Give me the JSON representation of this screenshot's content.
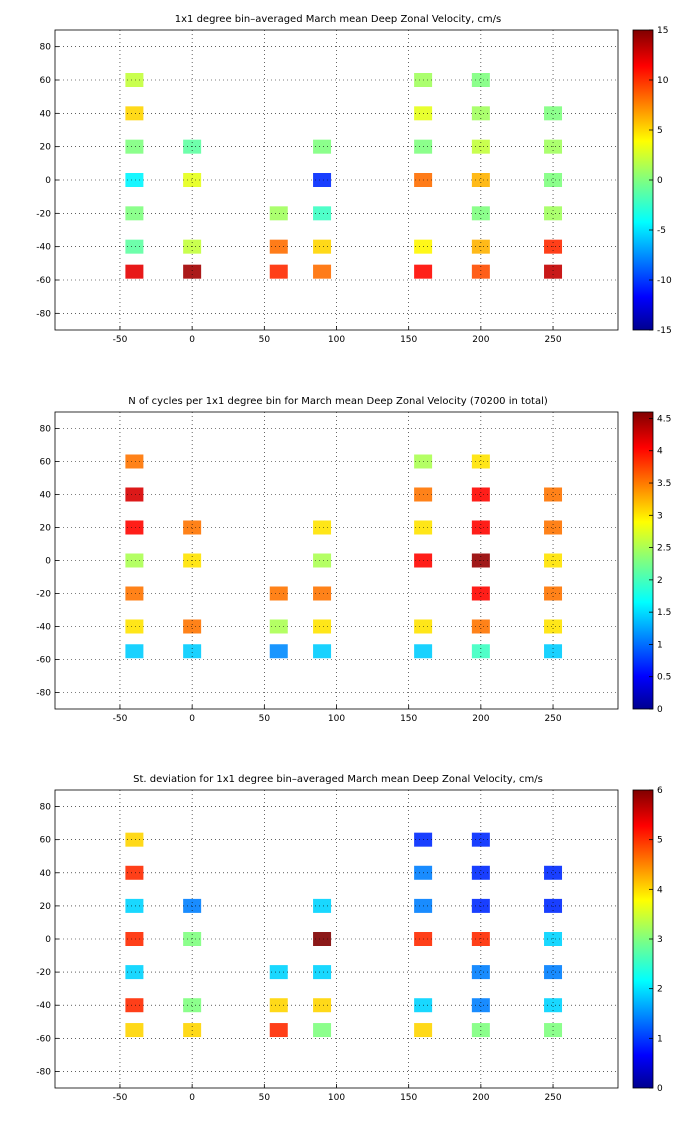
{
  "chart_data": [
    {
      "type": "heatmap",
      "title": "1x1 degree bin–averaged March mean Deep Zonal Velocity, cm/s",
      "xticks": [
        "-50",
        "0",
        "50",
        "100",
        "150",
        "200",
        "250"
      ],
      "yticks": [
        "80",
        "60",
        "40",
        "20",
        "0",
        "-20",
        "-40",
        "-60",
        "-80"
      ],
      "xlim": [
        -95,
        295
      ],
      "ylim": [
        -90,
        90
      ],
      "colorbar": {
        "min": -15,
        "max": 15,
        "ticks": [
          "15",
          "10",
          "5",
          "0",
          "-5",
          "-10",
          "-15"
        ]
      },
      "grid": true,
      "colormap": "jet",
      "sample_grid": {
        "lat": [
          60,
          40,
          20,
          0,
          -20,
          -40,
          -55
        ],
        "lon": [
          -40,
          0,
          60,
          90,
          160,
          200,
          250
        ],
        "values": [
          [
            2,
            null,
            null,
            null,
            1,
            0,
            null
          ],
          [
            5,
            null,
            null,
            null,
            3,
            1,
            0
          ],
          [
            0,
            -1,
            null,
            0,
            0,
            2,
            1
          ],
          [
            -4,
            3,
            null,
            -10,
            8,
            6,
            0
          ],
          [
            0,
            null,
            1,
            -2,
            null,
            0,
            1
          ],
          [
            -1,
            2,
            8,
            5,
            4,
            6,
            10
          ],
          [
            12,
            14,
            10,
            8,
            11,
            9,
            13
          ]
        ]
      }
    },
    {
      "type": "heatmap",
      "title": "N of cycles per 1x1 degree bin for March mean Deep Zonal Velocity (70200 in total)",
      "xticks": [
        "-50",
        "0",
        "50",
        "100",
        "150",
        "200",
        "250"
      ],
      "yticks": [
        "80",
        "60",
        "40",
        "20",
        "0",
        "-20",
        "-40",
        "-60",
        "-80"
      ],
      "xlim": [
        -95,
        295
      ],
      "ylim": [
        -90,
        90
      ],
      "colorbar": {
        "min": 0,
        "max": 4.6,
        "ticks": [
          "4.5",
          "4",
          "3.5",
          "3",
          "2.5",
          "2",
          "1.5",
          "1",
          "0.5",
          "0"
        ]
      },
      "grid": true,
      "colormap": "jet",
      "sample_grid": {
        "lat": [
          60,
          40,
          20,
          0,
          -20,
          -40,
          -55
        ],
        "lon": [
          -40,
          0,
          60,
          90,
          160,
          200,
          250
        ],
        "values": [
          [
            3.5,
            null,
            null,
            null,
            2.5,
            3,
            null
          ],
          [
            4.2,
            null,
            null,
            null,
            3.5,
            4,
            3.5
          ],
          [
            4,
            3.5,
            null,
            3,
            3,
            4,
            3.5
          ],
          [
            2.5,
            3,
            null,
            2.5,
            4,
            4.5,
            3
          ],
          [
            3.5,
            null,
            3.5,
            3.5,
            null,
            4,
            3.5
          ],
          [
            3,
            3.5,
            2.5,
            3,
            3,
            3.5,
            3
          ],
          [
            1.5,
            1.5,
            1.2,
            1.5,
            1.5,
            2,
            1.5
          ]
        ]
      }
    },
    {
      "type": "heatmap",
      "title": "St. deviation for 1x1 degree bin–averaged March mean Deep Zonal Velocity, cm/s",
      "xticks": [
        "-50",
        "0",
        "50",
        "100",
        "150",
        "200",
        "250"
      ],
      "yticks": [
        "80",
        "60",
        "40",
        "20",
        "0",
        "-20",
        "-40",
        "-60",
        "-80"
      ],
      "xlim": [
        -95,
        295
      ],
      "ylim": [
        -90,
        90
      ],
      "colorbar": {
        "min": 0,
        "max": 6,
        "ticks": [
          "6",
          "5",
          "4",
          "3",
          "2",
          "1",
          "0"
        ]
      },
      "grid": true,
      "colormap": "jet",
      "sample_grid": {
        "lat": [
          60,
          40,
          20,
          0,
          -20,
          -40,
          -55
        ],
        "lon": [
          -40,
          0,
          60,
          90,
          160,
          200,
          250
        ],
        "values": [
          [
            4,
            null,
            null,
            null,
            1,
            1,
            null
          ],
          [
            5,
            null,
            null,
            null,
            1.5,
            1,
            1
          ],
          [
            2,
            1.5,
            null,
            2,
            1.5,
            1,
            1
          ],
          [
            5,
            3,
            null,
            6,
            5,
            5,
            2
          ],
          [
            2,
            null,
            2,
            2,
            null,
            1.5,
            1.5
          ],
          [
            5,
            3,
            4,
            4,
            2,
            1.5,
            2
          ],
          [
            4,
            4,
            5,
            3,
            4,
            3,
            3
          ]
        ]
      }
    }
  ]
}
